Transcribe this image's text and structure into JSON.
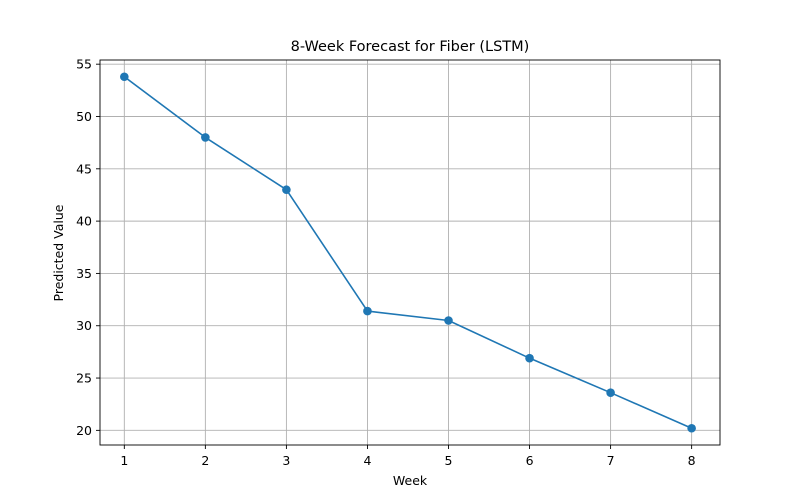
{
  "chart_data": {
    "type": "line",
    "title": "8-Week Forecast for Fiber (LSTM)",
    "xlabel": "Week",
    "ylabel": "Predicted Value",
    "x": [
      1,
      2,
      3,
      4,
      5,
      6,
      7,
      8
    ],
    "series": [
      {
        "values": [
          53.8,
          48.0,
          43.0,
          31.4,
          30.5,
          26.9,
          23.6,
          20.2
        ],
        "color": "#1f77b4",
        "marker": "circle"
      }
    ],
    "xlim": [
      0.7,
      8.35
    ],
    "ylim": [
      18.6,
      55.4
    ],
    "xticks": [
      "1",
      "2",
      "3",
      "4",
      "5",
      "6",
      "7",
      "8"
    ],
    "yticks": [
      "20",
      "25",
      "30",
      "35",
      "40",
      "45",
      "50",
      "55"
    ],
    "grid": true,
    "legend": "none"
  }
}
